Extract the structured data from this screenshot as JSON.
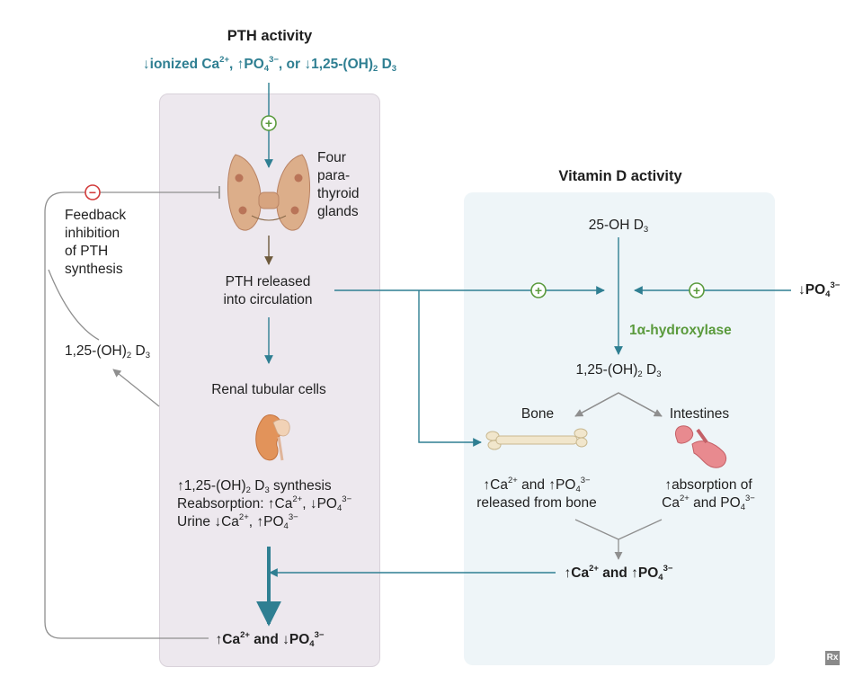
{
  "pth": {
    "title": "PTH activity",
    "stimuli": {
      "p1": "↓ionized Ca",
      "s1": "2+",
      "p2": ", ↑PO",
      "b2": "4",
      "s2": "3−",
      "p3": ", or ↓1,25-(OH)",
      "b3": "2",
      "p4": " D",
      "b4": "3"
    },
    "glands_label": [
      "Four",
      "para-",
      "thyroid",
      "glands"
    ],
    "released": [
      "PTH released",
      "into circulation"
    ],
    "renal_title": "Renal tubular cells",
    "renal_effects": {
      "l1": {
        "p1": "↑1,25-(OH)",
        "b1": "2",
        "p2": " D",
        "b2": "3",
        "p3": " synthesis"
      },
      "l2": {
        "p1": "Reabsorption: ↑Ca",
        "s1": "2+",
        "p2": ", ↓PO",
        "b2": "4",
        "s2": "3−"
      },
      "l3": {
        "p1": "Urine ↓Ca",
        "s1": "2+",
        "p2": ", ↑PO",
        "b2": "4",
        "s2": "3−"
      }
    },
    "outcome": {
      "p1": "↑Ca",
      "s1": "2+",
      "p2": " and ↓PO",
      "b2": "4",
      "s2": "3−"
    }
  },
  "feedback": {
    "label": [
      "Feedback",
      "inhibition",
      "of PTH",
      "synthesis"
    ],
    "metabolite": {
      "p1": "1,25-(OH)",
      "b1": "2",
      "p2": " D",
      "b2": "3"
    }
  },
  "vitd": {
    "title": "Vitamin D activity",
    "precursor": {
      "p1": "25-OH D",
      "b1": "3"
    },
    "enzyme": "1α-hydroxylase",
    "product": {
      "p1": "1,25-(OH)",
      "b1": "2",
      "p2": " D",
      "b2": "3"
    },
    "low_phosphate": {
      "p1": "↓PO",
      "b1": "4",
      "s1": "3−"
    },
    "bone_label": "Bone",
    "intestines_label": "Intestines",
    "bone_effect": {
      "p1": "↑Ca",
      "s1": "2+",
      "p2": " and ↑PO",
      "b2": "4",
      "s2": "3−",
      "l2": "released from bone"
    },
    "intestine_effect": {
      "l1": "↑absorption of",
      "p1": "Ca",
      "s1": "2+",
      "p2": " and PO",
      "b2": "4",
      "s2": "3−"
    },
    "outcome": {
      "p1": "↑Ca",
      "s1": "2+",
      "p2": " and ↑PO",
      "b2": "4",
      "s2": "3−"
    }
  },
  "signs": {
    "plus": "+",
    "minus": "−"
  },
  "logo": "Rx",
  "colors": {
    "teal": "#2f7f92",
    "green": "#5a9a3c",
    "red": "#d23b3b",
    "gray": "#8f8f8f"
  }
}
